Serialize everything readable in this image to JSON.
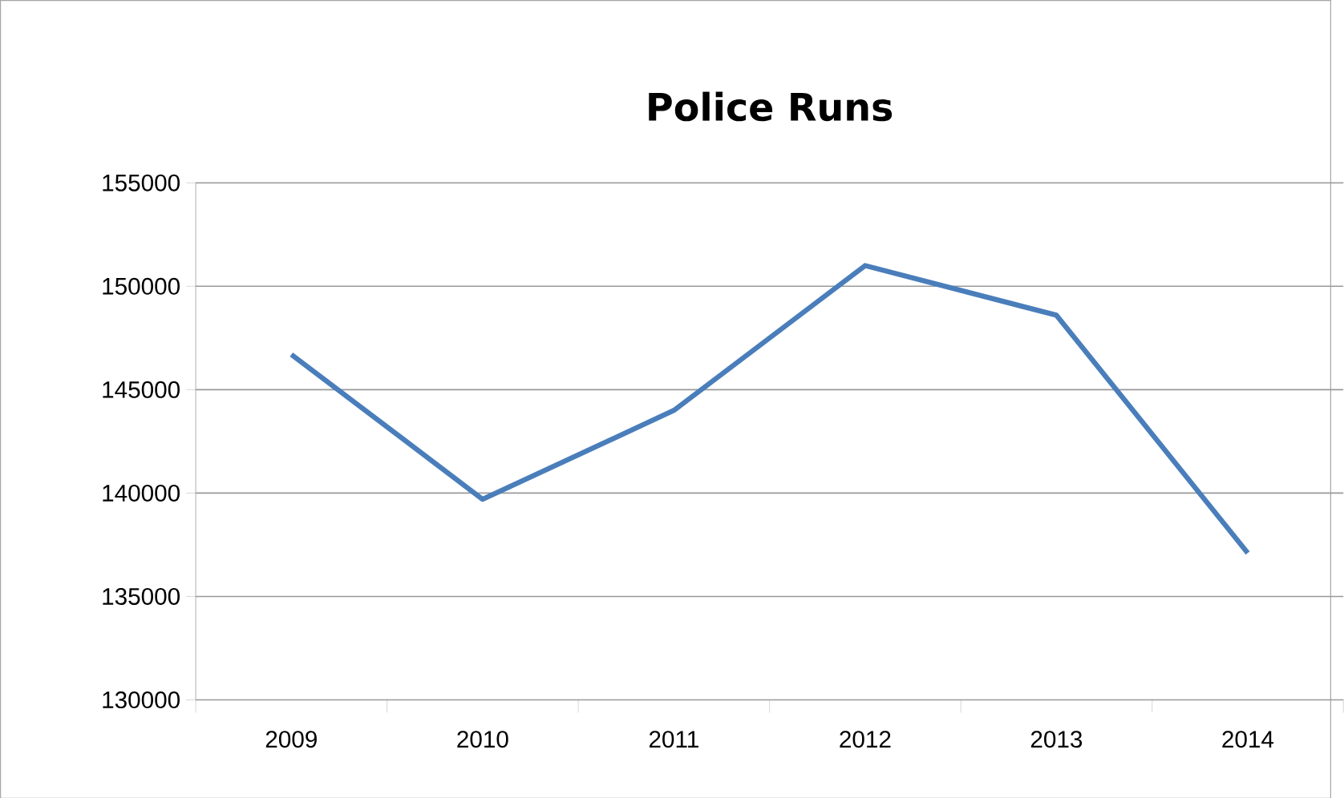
{
  "chart_data": {
    "type": "line",
    "title": "Police Runs",
    "categories": [
      "2009",
      "2010",
      "2011",
      "2012",
      "2013",
      "2014"
    ],
    "series": [
      {
        "color": "#4a7ebb",
        "values": [
          146700,
          139700,
          144000,
          151000,
          148600,
          137100
        ]
      }
    ],
    "ylim": [
      130000,
      155000
    ],
    "yticks": [
      130000,
      135000,
      140000,
      145000,
      150000,
      155000
    ],
    "grid": "y",
    "legend": false,
    "marker": "none",
    "line_style": "solid"
  }
}
